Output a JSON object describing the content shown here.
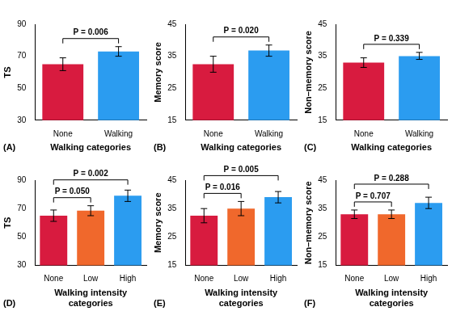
{
  "chart_data": [
    {
      "type": "bar",
      "title": "(A)",
      "x_label": "Walking categories",
      "y_label": "TS",
      "categories": [
        "None",
        "Walking"
      ],
      "values": [
        65,
        73
      ],
      "error_low": [
        61,
        70
      ],
      "error_high": [
        69,
        76
      ],
      "colors": [
        "#d81b3f",
        "#2b9cf0"
      ],
      "ylim": [
        30,
        90
      ],
      "yticks": [
        30,
        50,
        70,
        90
      ],
      "grid": false,
      "comparisons": [
        {
          "from": "None",
          "to": "Walking",
          "label": "P = 0.006"
        }
      ]
    },
    {
      "type": "bar",
      "title": "(B)",
      "x_label": "Walking categories",
      "y_label": "Memory score",
      "categories": [
        "None",
        "Walking"
      ],
      "values": [
        32.5,
        36.8
      ],
      "error_low": [
        30,
        35
      ],
      "error_high": [
        35,
        38.5
      ],
      "colors": [
        "#d81b3f",
        "#2b9cf0"
      ],
      "ylim": [
        15,
        45
      ],
      "yticks": [
        15,
        25,
        35,
        45
      ],
      "grid": false,
      "comparisons": [
        {
          "from": "None",
          "to": "Walking",
          "label": "P = 0.020"
        }
      ]
    },
    {
      "type": "bar",
      "title": "(C)",
      "x_label": "Walking categories",
      "y_label": "Non–memory score",
      "categories": [
        "None",
        "Walking"
      ],
      "values": [
        33,
        35
      ],
      "error_low": [
        31.5,
        34
      ],
      "error_high": [
        34.5,
        36.2
      ],
      "colors": [
        "#d81b3f",
        "#2b9cf0"
      ],
      "ylim": [
        15,
        45
      ],
      "yticks": [
        15,
        25,
        35,
        45
      ],
      "grid": false,
      "comparisons": [
        {
          "from": "None",
          "to": "Walking",
          "label": "P = 0.339"
        }
      ]
    },
    {
      "type": "bar",
      "title": "(D)",
      "x_label": "Walking intensity categories",
      "y_label": "TS",
      "categories": [
        "None",
        "Low",
        "High"
      ],
      "values": [
        65,
        68.5,
        79
      ],
      "error_low": [
        61,
        65,
        75
      ],
      "error_high": [
        69,
        72,
        83
      ],
      "colors": [
        "#d81b3f",
        "#f0682c",
        "#2b9cf0"
      ],
      "ylim": [
        30,
        90
      ],
      "yticks": [
        30,
        50,
        70,
        90
      ],
      "grid": false,
      "comparisons": [
        {
          "from": "None",
          "to": "Low",
          "label": "P = 0.050"
        },
        {
          "from": "None",
          "to": "High",
          "label": "P = 0.002"
        }
      ]
    },
    {
      "type": "bar",
      "title": "(E)",
      "x_label": "Walking intensity categories",
      "y_label": "Memory score",
      "categories": [
        "None",
        "Low",
        "High"
      ],
      "values": [
        32.5,
        35,
        39
      ],
      "error_low": [
        30,
        32.5,
        37
      ],
      "error_high": [
        35,
        37.5,
        41
      ],
      "colors": [
        "#d81b3f",
        "#f0682c",
        "#2b9cf0"
      ],
      "ylim": [
        15,
        45
      ],
      "yticks": [
        15,
        25,
        35,
        45
      ],
      "grid": false,
      "comparisons": [
        {
          "from": "None",
          "to": "Low",
          "label": "P = 0.016"
        },
        {
          "from": "None",
          "to": "High",
          "label": "P = 0.005"
        }
      ]
    },
    {
      "type": "bar",
      "title": "(F)",
      "x_label": "Walking intensity categories",
      "y_label": "Non–memory score",
      "categories": [
        "None",
        "Low",
        "High"
      ],
      "values": [
        33,
        33,
        37
      ],
      "error_low": [
        31.5,
        31.5,
        35
      ],
      "error_high": [
        34.5,
        34.5,
        39
      ],
      "colors": [
        "#d81b3f",
        "#f0682c",
        "#2b9cf0"
      ],
      "ylim": [
        15,
        45
      ],
      "yticks": [
        15,
        25,
        35,
        45
      ],
      "grid": false,
      "comparisons": [
        {
          "from": "None",
          "to": "Low",
          "label": "P = 0.707"
        },
        {
          "from": "None",
          "to": "High",
          "label": "P = 0.288"
        }
      ]
    }
  ]
}
